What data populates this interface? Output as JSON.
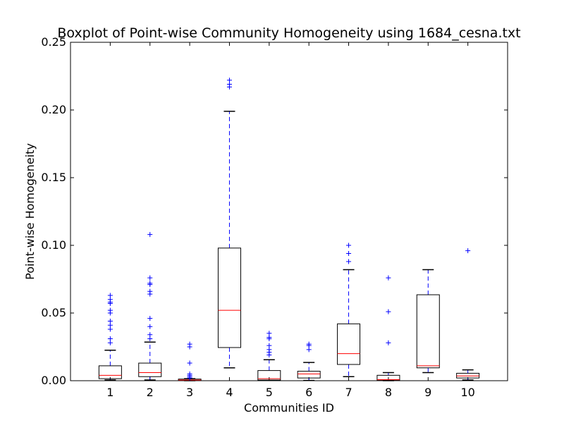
{
  "chart_data": {
    "type": "boxplot",
    "title": "Boxplot of Point-wise Community Homogeneity using 1684_cesna.txt",
    "xlabel": "Communities ID",
    "ylabel": "Point-wise Homogeneity",
    "ylim": [
      0,
      0.25
    ],
    "yticks": [
      "0.00",
      "0.05",
      "0.10",
      "0.15",
      "0.20",
      "0.25"
    ],
    "ytick_values": [
      0,
      0.05,
      0.1,
      0.15,
      0.2,
      0.25
    ],
    "grid": false,
    "colors": {
      "box": "#000000",
      "median": "#ff0000",
      "whisker": "#0000ff",
      "flier": "#0000ff",
      "cap": "#000000"
    },
    "categories": [
      "1",
      "2",
      "3",
      "4",
      "5",
      "6",
      "7",
      "8",
      "9",
      "10"
    ],
    "boxes": [
      {
        "id": "1",
        "whisker_low": 0.0005,
        "q1": 0.0015,
        "median": 0.004,
        "q3": 0.011,
        "whisker_high": 0.0225,
        "fliers": [
          0.028,
          0.031,
          0.038,
          0.041,
          0.044,
          0.05,
          0.052,
          0.057,
          0.058,
          0.06,
          0.063
        ]
      },
      {
        "id": "2",
        "whisker_low": 0.0005,
        "q1": 0.003,
        "median": 0.006,
        "q3": 0.013,
        "whisker_high": 0.0285,
        "fliers": [
          0.031,
          0.034,
          0.04,
          0.046,
          0.064,
          0.066,
          0.071,
          0.072,
          0.076,
          0.108
        ]
      },
      {
        "id": "3",
        "whisker_low": 0.0,
        "q1": 0.0002,
        "median": 0.0005,
        "q3": 0.0012,
        "whisker_high": 0.0015,
        "fliers": [
          0.002,
          0.003,
          0.004,
          0.005,
          0.013,
          0.025,
          0.027
        ]
      },
      {
        "id": "4",
        "whisker_low": 0.0095,
        "q1": 0.0245,
        "median": 0.052,
        "q3": 0.098,
        "whisker_high": 0.199,
        "fliers": [
          0.217,
          0.219,
          0.222
        ]
      },
      {
        "id": "5",
        "whisker_low": 0.0002,
        "q1": 0.0005,
        "median": 0.0015,
        "q3": 0.0075,
        "whisker_high": 0.0155,
        "fliers": [
          0.019,
          0.021,
          0.023,
          0.026,
          0.031,
          0.032,
          0.035
        ]
      },
      {
        "id": "6",
        "whisker_low": 0.0002,
        "q1": 0.002,
        "median": 0.005,
        "q3": 0.007,
        "whisker_high": 0.0135,
        "fliers": [
          0.023,
          0.026,
          0.027
        ]
      },
      {
        "id": "7",
        "whisker_low": 0.003,
        "q1": 0.012,
        "median": 0.02,
        "q3": 0.042,
        "whisker_high": 0.082,
        "fliers": [
          0.088,
          0.094,
          0.1
        ]
      },
      {
        "id": "8",
        "whisker_low": 0.0,
        "q1": 0.0002,
        "median": 0.0008,
        "q3": 0.004,
        "whisker_high": 0.006,
        "fliers": [
          0.028,
          0.051,
          0.076
        ]
      },
      {
        "id": "9",
        "whisker_low": 0.006,
        "q1": 0.0095,
        "median": 0.011,
        "q3": 0.0635,
        "whisker_high": 0.082,
        "fliers": []
      },
      {
        "id": "10",
        "whisker_low": 0.0005,
        "q1": 0.002,
        "median": 0.0035,
        "q3": 0.0055,
        "whisker_high": 0.008,
        "fliers": [
          0.096
        ]
      }
    ]
  }
}
